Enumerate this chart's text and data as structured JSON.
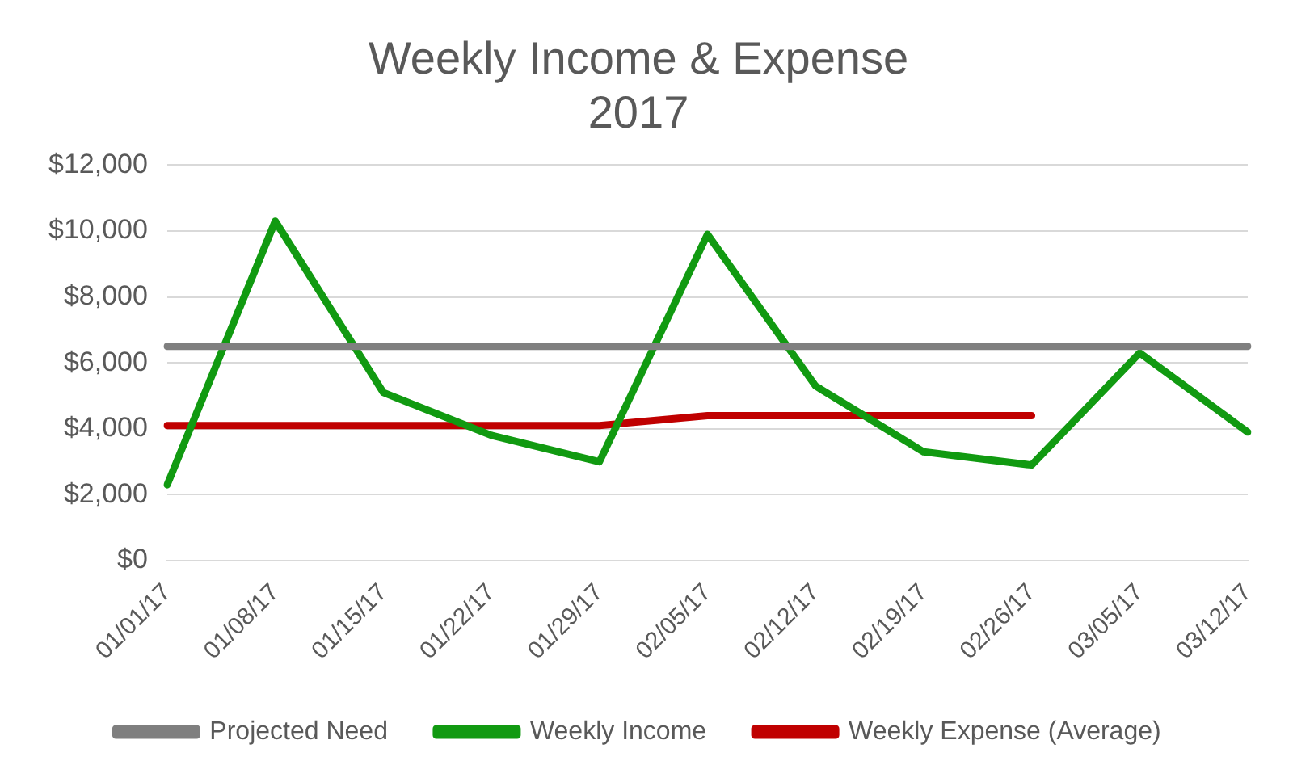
{
  "chart_data": {
    "type": "line",
    "title": "Weekly Income & Expense",
    "subtitle": "2017",
    "categories": [
      "01/01/17",
      "01/08/17",
      "01/15/17",
      "01/22/17",
      "01/29/17",
      "02/05/17",
      "02/12/17",
      "02/19/17",
      "02/26/17",
      "03/05/17",
      "03/12/17"
    ],
    "series": [
      {
        "name": "Projected Need",
        "color": "#7f7f7f",
        "values": [
          6500,
          6500,
          6500,
          6500,
          6500,
          6500,
          6500,
          6500,
          6500,
          6500,
          6500
        ]
      },
      {
        "name": "Weekly Income",
        "color": "#119a11",
        "values": [
          2300,
          10300,
          5100,
          3800,
          3000,
          9900,
          5300,
          3300,
          2900,
          6300,
          3900
        ]
      },
      {
        "name": "Weekly Expense (Average)",
        "color": "#c00000",
        "values": [
          4100,
          4100,
          4100,
          4100,
          4100,
          4400,
          4400,
          4400,
          4400,
          null,
          null
        ]
      }
    ],
    "ylim": [
      0,
      12000
    ],
    "yticks": [
      {
        "value": 0,
        "label": "$0"
      },
      {
        "value": 2000,
        "label": "$2,000"
      },
      {
        "value": 4000,
        "label": "$4,000"
      },
      {
        "value": 6000,
        "label": "$6,000"
      },
      {
        "value": 8000,
        "label": "$8,000"
      },
      {
        "value": 10000,
        "label": "$10,000"
      },
      {
        "value": 12000,
        "label": "$12,000"
      }
    ],
    "grid": "y",
    "legend": "bottom",
    "marker": "none",
    "line_style": "solid"
  }
}
